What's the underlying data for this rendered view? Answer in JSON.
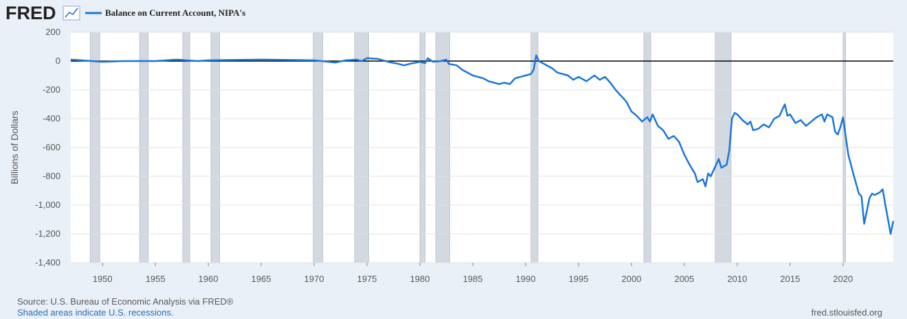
{
  "logo": "FRED",
  "chart_data": {
    "type": "line",
    "y_label": "Billions of Dollars",
    "source": "Source: U.S. Bureau of Economic Analysis via FRED®",
    "note": "Shaded areas indicate U.S. recessions.",
    "site": "fred.stlouisfed.org",
    "xlim": [
      1947,
      2024.75
    ],
    "xticks": [
      1950,
      1955,
      1960,
      1965,
      1970,
      1975,
      1980,
      1985,
      1990,
      1995,
      2000,
      2005,
      2010,
      2015,
      2020
    ],
    "ylim": [
      -1400,
      200
    ],
    "yticks": [
      200,
      0,
      -200,
      -400,
      -600,
      -800,
      {
        "value": -1000,
        "label": "-1,000"
      },
      {
        "value": -1200,
        "label": "-1,200"
      },
      {
        "value": -1400,
        "label": "-1,400"
      }
    ],
    "grid": true,
    "recessions": [
      [
        1948.83,
        1949.75
      ],
      [
        1953.5,
        1954.33
      ],
      [
        1957.58,
        1958.25
      ],
      [
        1960.25,
        1961.08
      ],
      [
        1969.92,
        1970.83
      ],
      [
        1973.83,
        1975.17
      ],
      [
        1980.0,
        1980.5
      ],
      [
        1981.5,
        1982.83
      ],
      [
        1990.5,
        1991.17
      ],
      [
        2001.17,
        2001.83
      ],
      [
        2007.92,
        2009.42
      ],
      [
        2020.0,
        2020.25
      ]
    ],
    "x": [
      1947,
      1948,
      1950,
      1952,
      1955,
      1957,
      1959,
      1960,
      1965,
      1970,
      1972,
      1973,
      1974,
      1974.5,
      1975,
      1976,
      1977,
      1978,
      1978.5,
      1979,
      1980,
      1980.5,
      1980.75,
      1981.25,
      1982,
      1982.5,
      1982.75,
      1983.5,
      1984,
      1985,
      1985.5,
      1986,
      1986.5,
      1987,
      1987.5,
      1988,
      1988.5,
      1989,
      1989.5,
      1990,
      1990.5,
      1990.75,
      1991,
      1991.25,
      1991.75,
      1992.5,
      1993,
      1994,
      1994.5,
      1995,
      1995.75,
      1996.5,
      1997,
      1997.5,
      1998,
      1998.5,
      1999,
      1999.5,
      2000,
      2000.5,
      2001,
      2001.5,
      2001.75,
      2002,
      2002.5,
      2003,
      2003.5,
      2004,
      2004.5,
      2005,
      2005.5,
      2006,
      2006.25,
      2006.75,
      2007,
      2007.25,
      2007.5,
      2008,
      2008.25,
      2008.5,
      2009,
      2009.25,
      2009.5,
      2009.75,
      2010,
      2010.5,
      2011,
      2011.25,
      2011.5,
      2012,
      2012.5,
      2013,
      2013.5,
      2014,
      2014.5,
      2014.75,
      2015,
      2015.5,
      2016,
      2016.5,
      2017,
      2017.5,
      2018,
      2018.25,
      2018.5,
      2019,
      2019.25,
      2019.5,
      2019.75,
      2020.0,
      2020.25,
      2020.5,
      2021.0,
      2021.5,
      2021.75,
      2022.0,
      2022.5,
      2022.75,
      2023.0,
      2023.5,
      2023.75,
      2024.0,
      2024.5,
      2024.75
    ],
    "series": [
      {
        "name": "Balance on Current Account, NIPA's",
        "color": "#1a76d8",
        "values": [
          10,
          5,
          -5,
          0,
          0,
          10,
          0,
          5,
          10,
          5,
          -10,
          5,
          10,
          0,
          20,
          15,
          -5,
          -20,
          -30,
          -20,
          -5,
          -15,
          20,
          -5,
          0,
          10,
          -20,
          -30,
          -60,
          -100,
          -110,
          -120,
          -140,
          -150,
          -160,
          -150,
          -160,
          -120,
          -110,
          -100,
          -90,
          -60,
          40,
          0,
          -20,
          -50,
          -80,
          -100,
          -130,
          -110,
          -140,
          -100,
          -130,
          -110,
          -150,
          -200,
          -240,
          -280,
          -350,
          -380,
          -420,
          -390,
          -420,
          -370,
          -450,
          -480,
          -540,
          -520,
          -560,
          -650,
          -720,
          -780,
          -840,
          -820,
          -870,
          -780,
          -800,
          -720,
          -680,
          -740,
          -720,
          -620,
          -400,
          -360,
          -370,
          -410,
          -440,
          -420,
          -480,
          -470,
          -440,
          -460,
          -400,
          -380,
          -300,
          -380,
          -370,
          -430,
          -410,
          -450,
          -420,
          -390,
          -370,
          -420,
          -370,
          -390,
          -490,
          -510,
          -460,
          -390,
          -520,
          -650,
          -790,
          -920,
          -940,
          -1130,
          -950,
          -920,
          -930,
          -910,
          -890,
          -1000,
          -1200,
          -1110
        ]
      }
    ]
  }
}
